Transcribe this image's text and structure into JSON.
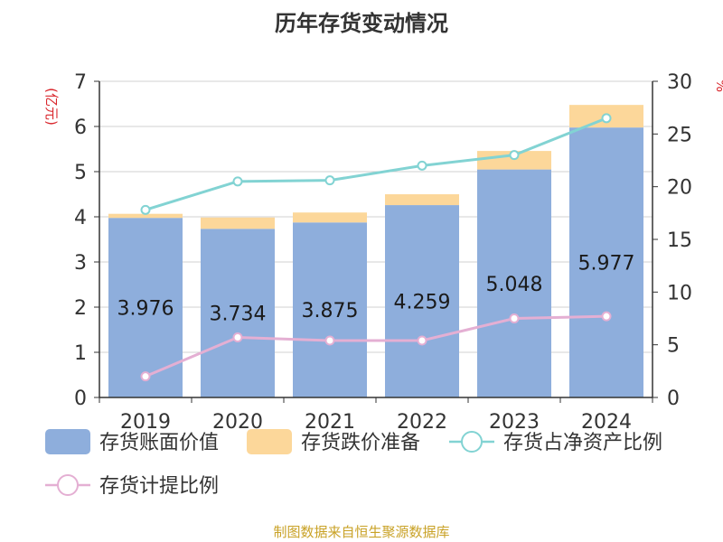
{
  "chart_data": {
    "type": "bar",
    "title": "历年存货变动情况",
    "categories": [
      "2019",
      "2020",
      "2021",
      "2022",
      "2023",
      "2024"
    ],
    "series": [
      {
        "name": "存货账面价值",
        "kind": "bar",
        "axis": "left",
        "stack": "total",
        "color": "#8eaedc",
        "values": [
          3.976,
          3.734,
          3.875,
          4.259,
          5.048,
          5.977
        ]
      },
      {
        "name": "存货跌价准备",
        "kind": "bar",
        "axis": "left",
        "stack": "total",
        "color": "#fcd79a",
        "values": [
          0.09,
          0.25,
          0.22,
          0.24,
          0.41,
          0.5
        ]
      },
      {
        "name": "存货占净资产比例",
        "kind": "line",
        "axis": "right",
        "color": "#82d3d3",
        "values": [
          17.8,
          20.5,
          20.6,
          22.0,
          23.0,
          26.5
        ]
      },
      {
        "name": "存货计提比例",
        "kind": "line",
        "axis": "right",
        "color": "#e4afd3",
        "values": [
          2.0,
          5.7,
          5.4,
          5.4,
          7.5,
          7.7
        ]
      }
    ],
    "data_labels": [
      "3.976",
      "3.734",
      "3.875",
      "4.259",
      "5.048",
      "5.977"
    ],
    "y_left": {
      "label": "(亿元)",
      "range": [
        0,
        7
      ],
      "ticks": [
        "0",
        "1",
        "2",
        "3",
        "4",
        "5",
        "6",
        "7"
      ]
    },
    "y_right": {
      "label": "%",
      "range": [
        0,
        30
      ],
      "ticks": [
        "0",
        "5",
        "10",
        "15",
        "20",
        "25",
        "30"
      ]
    },
    "grid": true,
    "legend_position": "bottom"
  },
  "footer": {
    "source": "制图数据来自恒生聚源数据库"
  }
}
